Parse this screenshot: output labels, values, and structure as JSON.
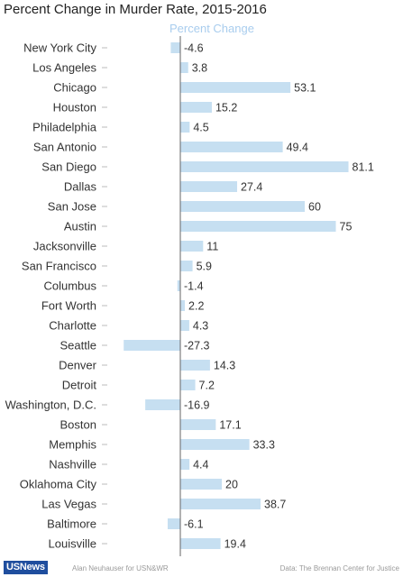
{
  "title": "Percent Change in Murder Rate, 2015-2016",
  "footer": {
    "logo": "USNews",
    "credit": "Alan Neuhauser for USN&WR",
    "source": "Data: The Brennan Center for Justice"
  },
  "colors": {
    "bar": "#c6dff1",
    "series_label": "#a9cdee",
    "axis": "#666666",
    "label": "#333333",
    "logo_bg": "#1f4e9e"
  },
  "chart_data": {
    "type": "bar",
    "orientation": "horizontal",
    "title": "Percent Change in Murder Rate, 2015-2016",
    "series": [
      {
        "name": "Percent Change"
      }
    ],
    "xlim": [
      -38,
      110
    ],
    "grid": false,
    "categories": [
      "New York City",
      "Los Angeles",
      "Chicago",
      "Houston",
      "Philadelphia",
      "San Antonio",
      "San Diego",
      "Dallas",
      "San Jose",
      "Austin",
      "Jacksonville",
      "San Francisco",
      "Columbus",
      "Fort Worth",
      "Charlotte",
      "Seattle",
      "Denver",
      "Detroit",
      "Washington, D.C.",
      "Boston",
      "Memphis",
      "Nashville",
      "Oklahoma City",
      "Las Vegas",
      "Baltimore",
      "Louisville"
    ],
    "values": [
      -4.6,
      3.8,
      53.1,
      15.2,
      4.5,
      49.4,
      81.1,
      27.4,
      60,
      75,
      11,
      5.9,
      -1.4,
      2.2,
      4.3,
      -27.3,
      14.3,
      7.2,
      -16.9,
      17.1,
      33.3,
      4.4,
      20,
      38.7,
      -6.1,
      19.4
    ],
    "value_labels": [
      "-4.6",
      "3.8",
      "53.1",
      "15.2",
      "4.5",
      "49.4",
      "81.1",
      "27.4",
      "60",
      "75",
      "11",
      "5.9",
      "-1.4",
      "2.2",
      "4.3",
      "-27.3",
      "14.3",
      "7.2",
      "-16.9",
      "17.1",
      "33.3",
      "4.4",
      "20",
      "38.7",
      "-6.1",
      "19.4"
    ]
  }
}
